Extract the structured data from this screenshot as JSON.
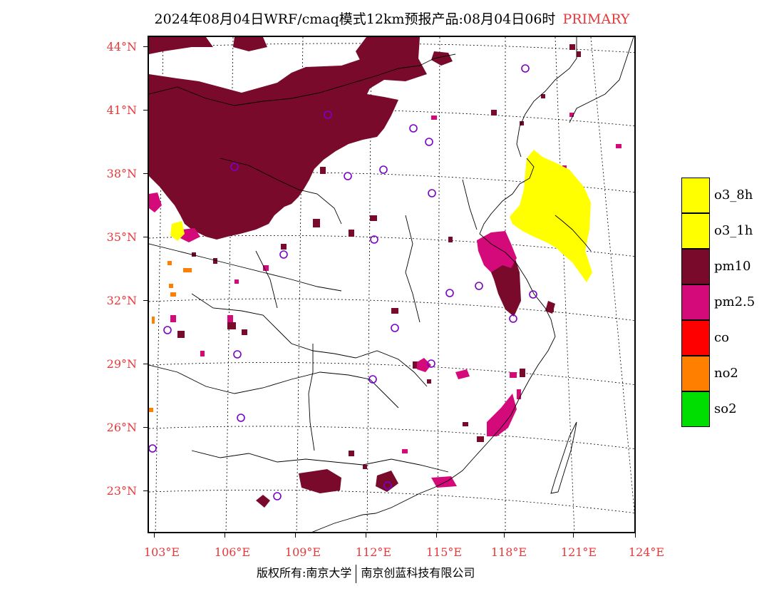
{
  "title": {
    "main": "2024年08月04日WRF/cmaq模式12km预报产品:08月04日06时",
    "tag": "PRIMARY"
  },
  "lat_labels": [
    "44°N",
    "41°N",
    "38°N",
    "35°N",
    "32°N",
    "29°N",
    "26°N",
    "23°N"
  ],
  "lon_labels": [
    "103°E",
    "106°E",
    "109°E",
    "112°E",
    "115°E",
    "118°E",
    "121°E",
    "124°E"
  ],
  "legend": [
    {
      "label": "o3_8h",
      "color": "#ffff00"
    },
    {
      "label": "o3_1h",
      "color": "#ffff00"
    },
    {
      "label": "pm10",
      "color": "#7a0a2b"
    },
    {
      "label": "pm2.5",
      "color": "#d4097a"
    },
    {
      "label": "co",
      "color": "#ff0000"
    },
    {
      "label": "no2",
      "color": "#ff8000"
    },
    {
      "label": "so2",
      "color": "#00dd00"
    }
  ],
  "footer": {
    "left": "版权所有:南京大学",
    "right": "南京创蓝科技有限公司"
  }
}
